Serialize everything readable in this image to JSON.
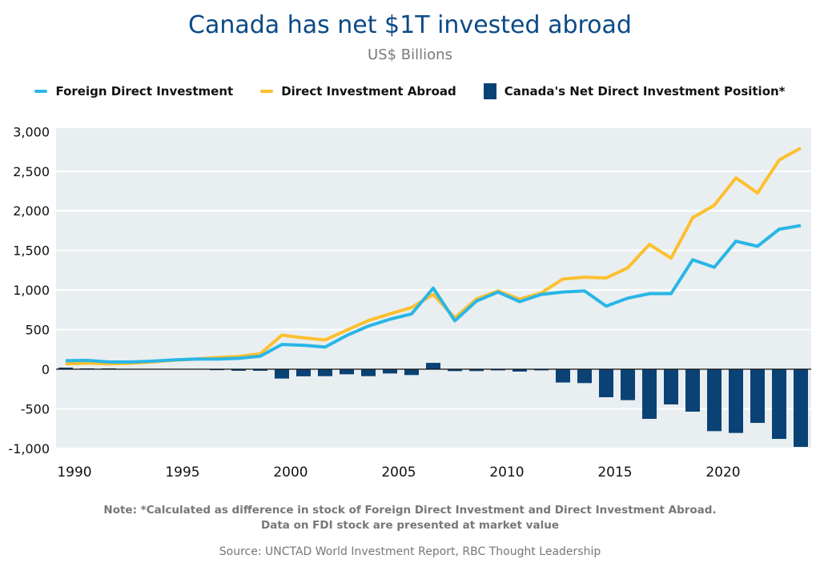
{
  "chart_data": {
    "type": "bar+line",
    "title": "Canada has net $1T invested abroad",
    "subtitle": "US$ Billions",
    "legend_position": "top",
    "grid": true,
    "ylim": [
      -1000,
      3000
    ],
    "yticks": [
      -1000,
      -500,
      0,
      500,
      1000,
      1500,
      2000,
      2500,
      3000
    ],
    "ytick_labels": [
      "-1,000",
      "-500",
      "0",
      "500",
      "1,000",
      "1,500",
      "2,000",
      "2,500",
      "3,000"
    ],
    "xticks": [
      1990,
      1995,
      2000,
      2005,
      2010,
      2015,
      2020
    ],
    "x": [
      1990,
      1991,
      1992,
      1993,
      1994,
      1995,
      1996,
      1997,
      1998,
      1999,
      2000,
      2001,
      2002,
      2003,
      2004,
      2005,
      2006,
      2007,
      2008,
      2009,
      2010,
      2011,
      2012,
      2013,
      2014,
      2015,
      2016,
      2017,
      2018,
      2019,
      2020,
      2021,
      2022,
      2023,
      2024
    ],
    "series": [
      {
        "name": "Foreign Direct Investment",
        "type": "line",
        "color": "#29b6e6",
        "values": [
          107,
          111,
          91,
          91,
          101,
          117,
          128,
          128,
          138,
          164,
          312,
          302,
          279,
          426,
          544,
          631,
          698,
          1024,
          611,
          860,
          974,
          853,
          944,
          974,
          988,
          796,
          897,
          954,
          954,
          1381,
          1287,
          1616,
          1552,
          1767,
          1814
        ]
      },
      {
        "name": "Direct Investment Abroad",
        "type": "line",
        "color": "#fcc02e",
        "values": [
          67,
          77,
          67,
          74,
          91,
          114,
          128,
          148,
          161,
          195,
          430,
          396,
          369,
          493,
          614,
          698,
          779,
          944,
          648,
          887,
          988,
          883,
          964,
          1139,
          1162,
          1152,
          1280,
          1576,
          1401,
          1912,
          2070,
          2416,
          2224,
          2641,
          2792
        ]
      },
      {
        "name": "Canada's Net Direct Investment Position*",
        "type": "bar",
        "color": "#0a4275",
        "values": [
          20,
          10,
          10,
          5,
          2,
          0,
          0,
          -12,
          -20,
          -20,
          -118,
          -90,
          -88,
          -64,
          -88,
          -54,
          -74,
          80,
          -24,
          -24,
          -15,
          -30,
          -15,
          -168,
          -175,
          -354,
          -391,
          -627,
          -445,
          -536,
          -782,
          -805,
          -678,
          -880,
          -981
        ]
      }
    ]
  },
  "colors": {
    "title": "#0b4a86",
    "plot_background": "#e9eef1"
  },
  "note_line1": "Note: *Calculated as difference in stock of Foreign Direct Investment and Direct Investment Abroad.",
  "note_line2": "Data on FDI stock are presented at market value",
  "source": "Source: UNCTAD World Investment Report, RBC Thought Leadership"
}
